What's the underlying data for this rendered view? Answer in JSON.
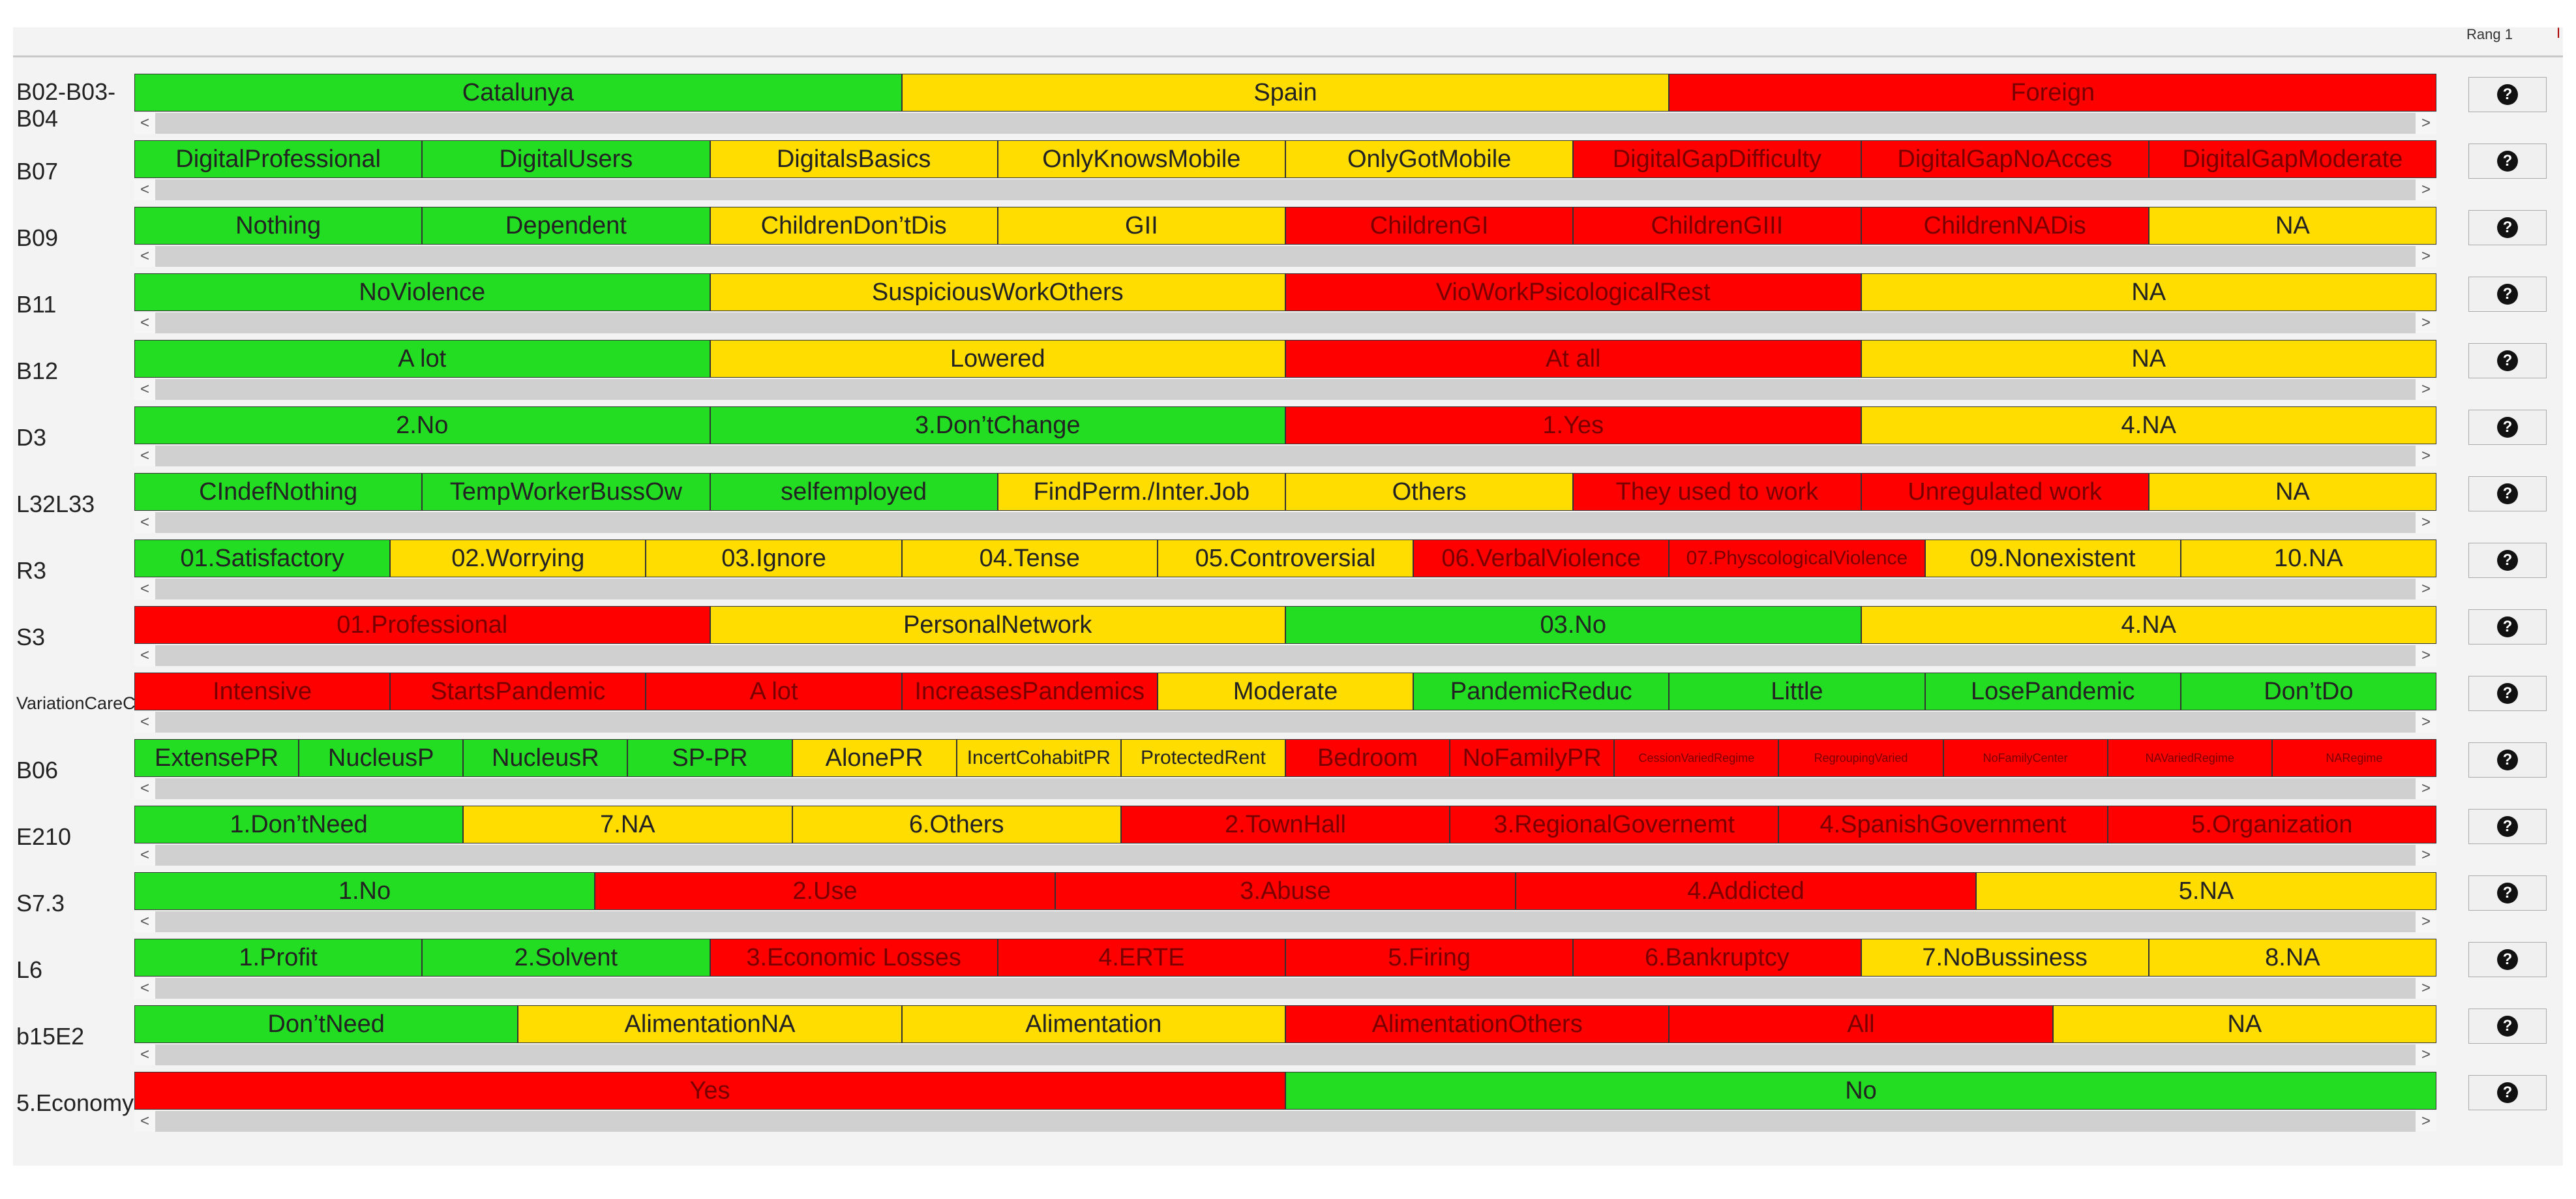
{
  "header": {
    "rang_label": "Rang 1",
    "rang_mark": "I"
  },
  "help_icon": "question-mark-circle-icon",
  "scroll_left_glyph": "<",
  "scroll_right_glyph": ">",
  "rows": [
    {
      "label": "B02-B03-B04",
      "segments": [
        {
          "text": "Catalunya",
          "color": "g"
        },
        {
          "text": "Spain",
          "color": "y"
        },
        {
          "text": "Foreign",
          "color": "r"
        }
      ]
    },
    {
      "label": "B07",
      "segments": [
        {
          "text": "DigitalProfessional",
          "color": "g"
        },
        {
          "text": "DigitalUsers",
          "color": "g"
        },
        {
          "text": "DigitalsBasics",
          "color": "y"
        },
        {
          "text": "OnlyKnowsMobile",
          "color": "y"
        },
        {
          "text": "OnlyGotMobile",
          "color": "y"
        },
        {
          "text": "DigitalGapDifficulty",
          "color": "r"
        },
        {
          "text": "DigitalGapNoAcces",
          "color": "r"
        },
        {
          "text": "DigitalGapModerate",
          "color": "r"
        }
      ]
    },
    {
      "label": "B09",
      "segments": [
        {
          "text": "Nothing",
          "color": "g"
        },
        {
          "text": "Dependent",
          "color": "g"
        },
        {
          "text": "ChildrenDon’tDis",
          "color": "y"
        },
        {
          "text": "GII",
          "color": "y"
        },
        {
          "text": "ChildrenGI",
          "color": "r"
        },
        {
          "text": "ChildrenGIII",
          "color": "r"
        },
        {
          "text": "ChildrenNADis",
          "color": "r"
        },
        {
          "text": "NA",
          "color": "y"
        }
      ]
    },
    {
      "label": "B11",
      "segments": [
        {
          "text": "NoViolence",
          "color": "g"
        },
        {
          "text": "SuspiciousWorkOthers",
          "color": "y"
        },
        {
          "text": "VioWorkPsicologicalRest",
          "color": "r"
        },
        {
          "text": "NA",
          "color": "y"
        }
      ]
    },
    {
      "label": "B12",
      "segments": [
        {
          "text": "A lot",
          "color": "g"
        },
        {
          "text": "Lowered",
          "color": "y"
        },
        {
          "text": "At all",
          "color": "r"
        },
        {
          "text": "NA",
          "color": "y"
        }
      ]
    },
    {
      "label": "D3",
      "segments": [
        {
          "text": "2.No",
          "color": "g"
        },
        {
          "text": "3.Don’tChange",
          "color": "g"
        },
        {
          "text": "1.Yes",
          "color": "r"
        },
        {
          "text": "4.NA",
          "color": "y"
        }
      ]
    },
    {
      "label": "L32L33",
      "segments": [
        {
          "text": "CIndefNothing",
          "color": "g"
        },
        {
          "text": "TempWorkerBussOw",
          "color": "g"
        },
        {
          "text": "selfemployed",
          "color": "g"
        },
        {
          "text": "FindPerm./Inter.Job",
          "color": "y"
        },
        {
          "text": "Others",
          "color": "y"
        },
        {
          "text": "They used to work",
          "color": "r"
        },
        {
          "text": "Unregulated work",
          "color": "r"
        },
        {
          "text": "NA",
          "color": "y"
        }
      ]
    },
    {
      "label": "R3",
      "segments": [
        {
          "text": "01.Satisfactory",
          "color": "g"
        },
        {
          "text": "02.Worrying",
          "color": "y"
        },
        {
          "text": "03.Ignore",
          "color": "y"
        },
        {
          "text": "04.Tense",
          "color": "y"
        },
        {
          "text": "05.Controversial",
          "color": "y"
        },
        {
          "text": "06.VerbalViolence",
          "color": "r"
        },
        {
          "text": "07.PhyscologicalViolence",
          "color": "r",
          "size": "t"
        },
        {
          "text": "09.Nonexistent",
          "color": "y"
        },
        {
          "text": "10.NA",
          "color": "y"
        }
      ]
    },
    {
      "label": "S3",
      "segments": [
        {
          "text": "01.Professional",
          "color": "r"
        },
        {
          "text": "PersonalNetwork",
          "color": "y"
        },
        {
          "text": "03.No",
          "color": "g"
        },
        {
          "text": "4.NA",
          "color": "y"
        }
      ]
    },
    {
      "label": "VariationCareCOVID",
      "small": true,
      "segments": [
        {
          "text": "Intensive",
          "color": "r"
        },
        {
          "text": "StartsPandemic",
          "color": "r"
        },
        {
          "text": "A lot",
          "color": "r"
        },
        {
          "text": "IncreasesPandemics",
          "color": "r"
        },
        {
          "text": "Moderate",
          "color": "y"
        },
        {
          "text": "PandemicReduc",
          "color": "g"
        },
        {
          "text": "Little",
          "color": "g"
        },
        {
          "text": "LosePandemic",
          "color": "g"
        },
        {
          "text": "Don’tDo",
          "color": "g"
        }
      ]
    },
    {
      "label": "B06",
      "segments": [
        {
          "text": "ExtensePR",
          "color": "g"
        },
        {
          "text": "NucleusP",
          "color": "g"
        },
        {
          "text": "NucleusR",
          "color": "g"
        },
        {
          "text": "SP-PR",
          "color": "g"
        },
        {
          "text": "AlonePR",
          "color": "y"
        },
        {
          "text": "IncertCohabitPR",
          "color": "y",
          "size": "t"
        },
        {
          "text": "ProtectedRent",
          "color": "y",
          "size": "t"
        },
        {
          "text": "Bedroom",
          "color": "r"
        },
        {
          "text": "NoFamilyPR",
          "color": "r"
        },
        {
          "text": "CessionVariedRegime",
          "color": "r",
          "size": "tt"
        },
        {
          "text": "RegroupingVaried",
          "color": "r",
          "size": "tt"
        },
        {
          "text": "NoFamilyCenter",
          "color": "r",
          "size": "tt"
        },
        {
          "text": "NAVariedRegime",
          "color": "r",
          "size": "tt"
        },
        {
          "text": "NARegime",
          "color": "r",
          "size": "tt"
        }
      ]
    },
    {
      "label": "E210",
      "segments": [
        {
          "text": "1.Don’tNeed",
          "color": "g"
        },
        {
          "text": "7.NA",
          "color": "y"
        },
        {
          "text": "6.Others",
          "color": "y"
        },
        {
          "text": "2.TownHall",
          "color": "r"
        },
        {
          "text": "3.RegionalGovernemt",
          "color": "r"
        },
        {
          "text": "4.SpanishGovernment",
          "color": "r"
        },
        {
          "text": "5.Organization",
          "color": "r"
        }
      ]
    },
    {
      "label": "S7.3",
      "segments": [
        {
          "text": "1.No",
          "color": "g"
        },
        {
          "text": "2.Use",
          "color": "r"
        },
        {
          "text": "3.Abuse",
          "color": "r"
        },
        {
          "text": "4.Addicted",
          "color": "r"
        },
        {
          "text": "5.NA",
          "color": "y"
        }
      ]
    },
    {
      "label": "L6",
      "segments": [
        {
          "text": "1.Profit",
          "color": "g"
        },
        {
          "text": "2.Solvent",
          "color": "g"
        },
        {
          "text": "3.Economic Losses",
          "color": "r"
        },
        {
          "text": "4.ERTE",
          "color": "r"
        },
        {
          "text": "5.Firing",
          "color": "r"
        },
        {
          "text": "6.Bankruptcy",
          "color": "r"
        },
        {
          "text": "7.NoBussiness",
          "color": "y"
        },
        {
          "text": "8.NA",
          "color": "y"
        }
      ]
    },
    {
      "label": "b15E2",
      "segments": [
        {
          "text": "Don’tNeed",
          "color": "g"
        },
        {
          "text": "AlimentationNA",
          "color": "y"
        },
        {
          "text": "Alimentation",
          "color": "y"
        },
        {
          "text": "AlimentationOthers",
          "color": "r"
        },
        {
          "text": "All",
          "color": "r"
        },
        {
          "text": "NA",
          "color": "y"
        }
      ]
    },
    {
      "label": "5.Economy",
      "segments": [
        {
          "text": "Yes",
          "color": "r"
        },
        {
          "text": "No",
          "color": "g"
        }
      ]
    }
  ]
}
